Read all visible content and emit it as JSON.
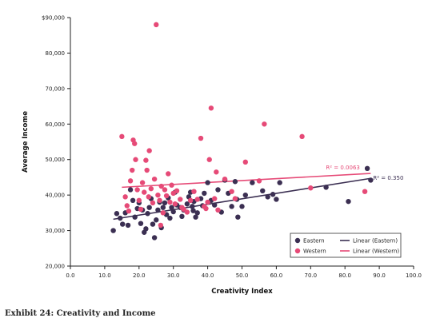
{
  "caption": "Exhibit 24: Creativity and Income",
  "colors": {
    "eastern": "#3b2f52",
    "western": "#e64a77",
    "axis": "#222222"
  },
  "chart_data": {
    "type": "scatter",
    "xlabel": "Creativity Index",
    "ylabel": "Average Income",
    "xlim": [
      0,
      100
    ],
    "ylim": [
      20000,
      90000
    ],
    "x_ticks": [
      "0.0",
      "10.0",
      "20.0",
      "30.0",
      "40.0",
      "50.0",
      "60.0",
      "70.0",
      "80.0",
      "90.0",
      "100.0"
    ],
    "y_ticks": [
      "20,000",
      "30,000",
      "40,000",
      "50,000",
      "60,000",
      "70,000",
      "80,000",
      "$90,000"
    ],
    "grid": false,
    "legend": {
      "placement": "bottom-right",
      "items": [
        "Eastern",
        "Western",
        "Linear (Eastern)",
        "Linear (Western)"
      ]
    },
    "series": [
      {
        "name": "Eastern",
        "color": "#3b2f52",
        "points": [
          [
            12.5,
            30000
          ],
          [
            13.5,
            34800
          ],
          [
            14.5,
            33500
          ],
          [
            15.2,
            31800
          ],
          [
            16.0,
            35000
          ],
          [
            16.8,
            31500
          ],
          [
            17.5,
            41500
          ],
          [
            18.2,
            38500
          ],
          [
            18.8,
            33800
          ],
          [
            19.5,
            36200
          ],
          [
            20.0,
            37800
          ],
          [
            20.5,
            32000
          ],
          [
            21.0,
            35800
          ],
          [
            21.5,
            29500
          ],
          [
            22.0,
            30500
          ],
          [
            22.5,
            34800
          ],
          [
            23.0,
            36500
          ],
          [
            23.5,
            39000
          ],
          [
            24.0,
            31800
          ],
          [
            24.5,
            28000
          ],
          [
            25.0,
            33000
          ],
          [
            25.5,
            35800
          ],
          [
            26.0,
            38000
          ],
          [
            26.5,
            30800
          ],
          [
            27.0,
            36500
          ],
          [
            27.5,
            37800
          ],
          [
            28.0,
            34500
          ],
          [
            28.5,
            39200
          ],
          [
            29.0,
            33500
          ],
          [
            29.5,
            36500
          ],
          [
            30.0,
            35300
          ],
          [
            30.5,
            40800
          ],
          [
            31.0,
            37200
          ],
          [
            32.0,
            36500
          ],
          [
            32.5,
            34000
          ],
          [
            33.0,
            35800
          ],
          [
            34.0,
            37500
          ],
          [
            34.5,
            39500
          ],
          [
            35.0,
            40800
          ],
          [
            35.5,
            36800
          ],
          [
            36.0,
            38200
          ],
          [
            36.5,
            33800
          ],
          [
            37.0,
            35000
          ],
          [
            38.0,
            39000
          ],
          [
            38.5,
            37000
          ],
          [
            39.0,
            40500
          ],
          [
            40.0,
            43500
          ],
          [
            41.0,
            38500
          ],
          [
            42.0,
            37200
          ],
          [
            43.0,
            41500
          ],
          [
            44.0,
            35200
          ],
          [
            45.0,
            44200
          ],
          [
            46.0,
            40500
          ],
          [
            47.0,
            36800
          ],
          [
            48.0,
            43800
          ],
          [
            48.5,
            38800
          ],
          [
            48.8,
            33800
          ],
          [
            50.0,
            36800
          ],
          [
            51.0,
            40000
          ],
          [
            53.0,
            43500
          ],
          [
            56.0,
            41200
          ],
          [
            57.5,
            39500
          ],
          [
            59.0,
            40200
          ],
          [
            60.0,
            38800
          ],
          [
            61.0,
            43500
          ],
          [
            74.5,
            42200
          ],
          [
            81.0,
            38200
          ],
          [
            86.5,
            47500
          ],
          [
            87.5,
            44200
          ],
          [
            35.8,
            35600
          ]
        ]
      },
      {
        "name": "Western",
        "color": "#e64a77",
        "points": [
          [
            15.0,
            56500
          ],
          [
            16.0,
            39500
          ],
          [
            16.5,
            37000
          ],
          [
            17.0,
            35500
          ],
          [
            17.5,
            44000
          ],
          [
            18.0,
            47000
          ],
          [
            18.3,
            55500
          ],
          [
            18.7,
            54500
          ],
          [
            19.0,
            50000
          ],
          [
            19.5,
            41500
          ],
          [
            20.0,
            38500
          ],
          [
            20.5,
            36000
          ],
          [
            21.0,
            43500
          ],
          [
            21.5,
            40800
          ],
          [
            22.0,
            49800
          ],
          [
            22.3,
            47000
          ],
          [
            22.8,
            39500
          ],
          [
            23.0,
            52500
          ],
          [
            23.5,
            41800
          ],
          [
            24.0,
            37800
          ],
          [
            24.5,
            44500
          ],
          [
            25.0,
            88000
          ],
          [
            25.5,
            40000
          ],
          [
            26.0,
            38500
          ],
          [
            26.5,
            42500
          ],
          [
            27.0,
            35000
          ],
          [
            27.5,
            41500
          ],
          [
            28.0,
            39800
          ],
          [
            28.5,
            46000
          ],
          [
            29.0,
            38000
          ],
          [
            29.5,
            42800
          ],
          [
            30.0,
            40500
          ],
          [
            30.5,
            37500
          ],
          [
            31.0,
            41200
          ],
          [
            32.0,
            38800
          ],
          [
            33.0,
            36000
          ],
          [
            34.0,
            35200
          ],
          [
            35.0,
            38500
          ],
          [
            36.0,
            41000
          ],
          [
            37.0,
            38800
          ],
          [
            38.0,
            56000
          ],
          [
            39.0,
            36800
          ],
          [
            40.0,
            38000
          ],
          [
            40.5,
            50000
          ],
          [
            41.0,
            64500
          ],
          [
            42.0,
            39000
          ],
          [
            42.5,
            46500
          ],
          [
            43.0,
            35800
          ],
          [
            45.0,
            44500
          ],
          [
            47.0,
            41000
          ],
          [
            48.0,
            39000
          ],
          [
            51.0,
            49300
          ],
          [
            55.0,
            44000
          ],
          [
            56.5,
            60000
          ],
          [
            67.5,
            56500
          ],
          [
            70.0,
            42000
          ],
          [
            85.8,
            41000
          ],
          [
            26.3,
            31500
          ],
          [
            39.5,
            36200
          ],
          [
            32.5,
            36500
          ]
        ]
      }
    ],
    "trendlines": [
      {
        "name": "Linear (Eastern)",
        "color": "#3b2f52",
        "x": [
          12.5,
          87.5
        ],
        "y": [
          33200,
          44700
        ],
        "r2_label": "R² = 0.350"
      },
      {
        "name": "Linear (Western)",
        "color": "#e64a77",
        "x": [
          15.0,
          87.5
        ],
        "y": [
          42200,
          46100
        ],
        "r2_label": "R² = 0.0063"
      }
    ]
  }
}
